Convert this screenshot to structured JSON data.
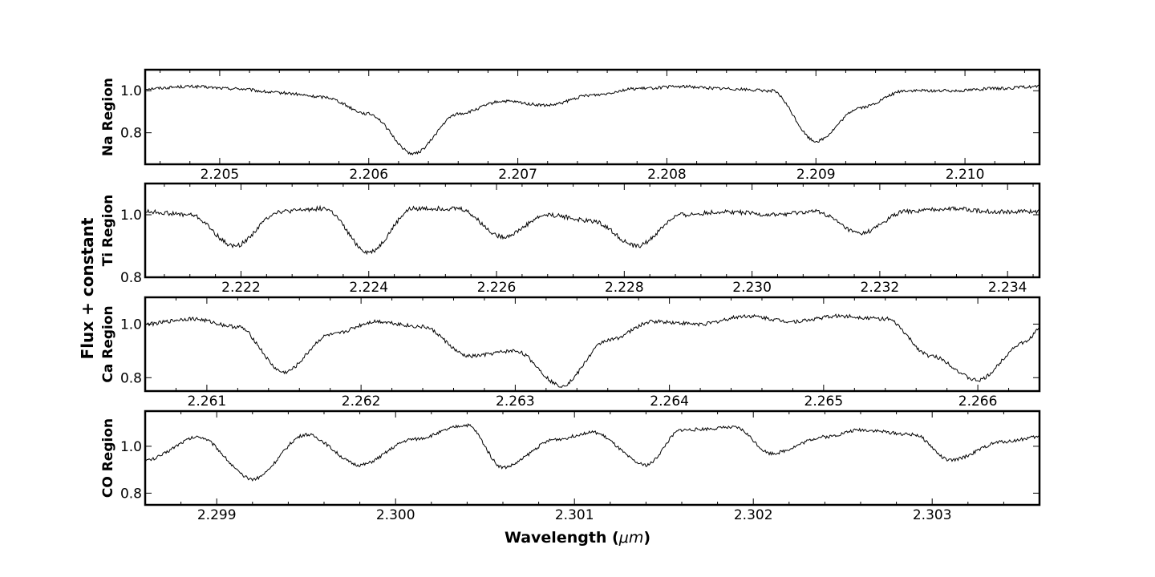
{
  "chart_data": [
    {
      "type": "line",
      "ylabel": "Na Region",
      "xlim": [
        2.2045,
        2.2105
      ],
      "ylim": [
        0.65,
        1.1
      ],
      "xticks": [
        "2.205",
        "2.206",
        "2.207",
        "2.208",
        "2.209",
        "2.210"
      ],
      "yticks": [
        "0.8",
        "1.0"
      ],
      "grid": false,
      "series": [
        {
          "x": [
            2.2045,
            2.2048,
            2.2051,
            2.2054,
            2.2057,
            2.206,
            2.2063,
            2.2066,
            2.2069,
            2.2072,
            2.2075,
            2.2078,
            2.2081,
            2.2084,
            2.2087,
            2.209,
            2.2093,
            2.2096,
            2.2099,
            2.2102,
            2.2105
          ],
          "y": [
            1.01,
            1.02,
            1.01,
            0.99,
            0.97,
            0.89,
            0.7,
            0.89,
            0.95,
            0.93,
            0.98,
            1.01,
            1.02,
            1.01,
            1.0,
            0.76,
            0.92,
            1.0,
            1.0,
            1.01,
            1.02
          ]
        }
      ]
    },
    {
      "type": "line",
      "ylabel": "Ti Region",
      "xlim": [
        2.2205,
        2.2345
      ],
      "ylim": [
        0.8,
        1.1
      ],
      "xticks": [
        "2.222",
        "2.224",
        "2.226",
        "2.228",
        "2.230",
        "2.232",
        "2.234"
      ],
      "yticks": [
        "0.8",
        "1.0"
      ],
      "grid": false,
      "series": [
        {
          "x": [
            2.2205,
            2.2212,
            2.2219,
            2.2226,
            2.2233,
            2.224,
            2.2247,
            2.2254,
            2.2261,
            2.2268,
            2.2275,
            2.2282,
            2.2289,
            2.2296,
            2.2303,
            2.231,
            2.2317,
            2.2324,
            2.2331,
            2.2338,
            2.2345
          ],
          "y": [
            1.01,
            1.0,
            0.9,
            1.01,
            1.02,
            0.88,
            1.02,
            1.02,
            0.93,
            1.0,
            0.98,
            0.9,
            1.0,
            1.01,
            1.0,
            1.01,
            0.94,
            1.01,
            1.02,
            1.01,
            1.01
          ]
        }
      ]
    },
    {
      "type": "line",
      "ylabel": "Ca Region",
      "xlim": [
        2.2606,
        2.2664
      ],
      "ylim": [
        0.75,
        1.1
      ],
      "xticks": [
        "2.261",
        "2.262",
        "2.263",
        "2.264",
        "2.265",
        "2.266"
      ],
      "yticks": [
        "0.8",
        "1.0"
      ],
      "grid": false,
      "series": [
        {
          "x": [
            2.2606,
            2.2609,
            2.2612,
            2.2615,
            2.2618,
            2.2621,
            2.2624,
            2.2627,
            2.263,
            2.2633,
            2.2636,
            2.2639,
            2.2642,
            2.2645,
            2.2648,
            2.2651,
            2.2654,
            2.2657,
            2.266,
            2.2663,
            2.2664
          ],
          "y": [
            1.0,
            1.02,
            0.99,
            0.82,
            0.96,
            1.01,
            0.99,
            0.88,
            0.9,
            0.77,
            0.94,
            1.01,
            1.0,
            1.03,
            1.01,
            1.03,
            1.02,
            0.88,
            0.79,
            0.93,
            0.98
          ]
        }
      ]
    },
    {
      "type": "line",
      "ylabel": "CO Region",
      "xlim": [
        2.2986,
        2.3036
      ],
      "ylim": [
        0.75,
        1.15
      ],
      "xticks": [
        "2.299",
        "2.300",
        "2.301",
        "2.302",
        "2.303"
      ],
      "yticks": [
        "0.8",
        "1.0"
      ],
      "grid": false,
      "series": [
        {
          "x": [
            2.2986,
            2.2989,
            2.2992,
            2.2995,
            2.2998,
            2.3001,
            2.3004,
            2.3006,
            2.3009,
            2.3011,
            2.3014,
            2.3016,
            2.3019,
            2.3021,
            2.3024,
            2.3026,
            2.3029,
            2.3031,
            2.3034,
            2.3036
          ],
          "y": [
            0.94,
            1.04,
            0.86,
            1.05,
            0.92,
            1.03,
            1.09,
            0.91,
            1.03,
            1.06,
            0.92,
            1.07,
            1.08,
            0.97,
            1.04,
            1.07,
            1.05,
            0.94,
            1.02,
            1.04
          ]
        }
      ]
    }
  ],
  "xlabel": "Wavelength (",
  "xlabel_unit": "μm",
  "xlabel_close": ")",
  "common_ylabel": "Flux + constant"
}
